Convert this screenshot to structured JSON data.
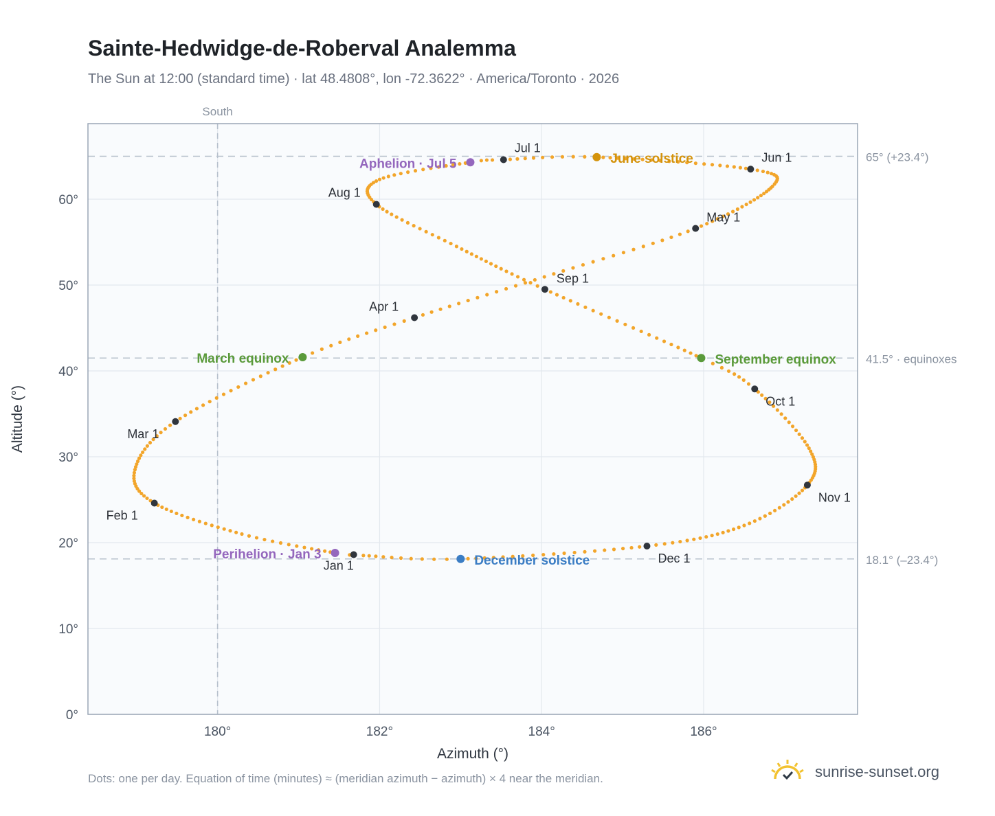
{
  "header": {
    "title": "Sainte-Hedwidge-de-Roberval Analemma",
    "subtitle": "The Sun at 12:00 (standard time) · lat 48.4808°, lon -72.3622° · America/Toronto · 2026"
  },
  "footer": {
    "note": "Dots: one per day. Equation of time (minutes) ≈ (meridian azimuth − azimuth) × 4 near the meridian.",
    "brand": "sunrise-sunset.org"
  },
  "colors": {
    "curve": "#f2a52a",
    "month_marker": "#30353d",
    "solstice_june": "#d4930c",
    "solstice_december": "#3b7dc4",
    "equinox": "#5a9a3a",
    "apsis": "#9467bd",
    "reference_line": "#b6c0cc",
    "plot_bg": "#f9fbfd",
    "axis_border": "#9aa6b5"
  },
  "chart_data": {
    "type": "scatter",
    "title": "Sainte-Hedwidge-de-Roberval Analemma",
    "xlabel": "Azimuth (°)",
    "ylabel": "Altitude (°)",
    "xlim": [
      178.4,
      187.9
    ],
    "ylim": [
      0,
      68.8
    ],
    "x_ticks": [
      180,
      182,
      184,
      186
    ],
    "x_tick_labels": [
      "180°",
      "182°",
      "184°",
      "186°"
    ],
    "y_ticks": [
      0,
      10,
      20,
      30,
      40,
      50,
      60
    ],
    "y_tick_labels": [
      "0°",
      "10°",
      "20°",
      "30°",
      "40°",
      "50°",
      "60°"
    ],
    "grid": true,
    "south_line": {
      "x": 180,
      "label": "South"
    },
    "reference_lines": [
      {
        "y": 65.0,
        "label": "65° (+23.4°)"
      },
      {
        "y": 41.5,
        "label": "41.5° · equinoxes"
      },
      {
        "y": 18.1,
        "label": "18.1° (–23.4°)"
      }
    ],
    "month_markers": [
      {
        "label": "Jan 1",
        "x": 181.68,
        "y": 18.6
      },
      {
        "label": "Feb 1",
        "x": 179.22,
        "y": 24.6
      },
      {
        "label": "Mar 1",
        "x": 179.48,
        "y": 34.1
      },
      {
        "label": "Apr 1",
        "x": 182.43,
        "y": 46.2
      },
      {
        "label": "May 1",
        "x": 185.9,
        "y": 56.6
      },
      {
        "label": "Jun 1",
        "x": 186.58,
        "y": 63.5
      },
      {
        "label": "Jul 1",
        "x": 183.53,
        "y": 64.6
      },
      {
        "label": "Aug 1",
        "x": 181.96,
        "y": 59.4
      },
      {
        "label": "Sep 1",
        "x": 184.04,
        "y": 49.5
      },
      {
        "label": "Oct 1",
        "x": 186.63,
        "y": 37.9
      },
      {
        "label": "Nov 1",
        "x": 187.28,
        "y": 26.7
      },
      {
        "label": "Dec 1",
        "x": 185.3,
        "y": 19.6
      }
    ],
    "special_points": [
      {
        "label": "June solstice",
        "x": 184.68,
        "y": 64.9,
        "kind": "solstice_june"
      },
      {
        "label": "December solstice",
        "x": 183.0,
        "y": 18.1,
        "kind": "solstice_december"
      },
      {
        "label": "March equinox",
        "x": 181.05,
        "y": 41.6,
        "kind": "equinox"
      },
      {
        "label": "September equinox",
        "x": 185.97,
        "y": 41.5,
        "kind": "equinox"
      },
      {
        "label": "Aphelion · Jul 5",
        "x": 183.12,
        "y": 64.3,
        "kind": "apsis"
      },
      {
        "label": "Perihelion · Jan 3",
        "x": 181.45,
        "y": 18.8,
        "kind": "apsis"
      }
    ],
    "daily_path_knots": [
      [
        1,
        181.68,
        18.6
      ],
      [
        3,
        181.45,
        18.8
      ],
      [
        16,
        180.3,
        21.0
      ],
      [
        32,
        179.22,
        24.6
      ],
      [
        45,
        178.98,
        28.5
      ],
      [
        60,
        179.48,
        34.1
      ],
      [
        79,
        181.05,
        41.6
      ],
      [
        91,
        182.43,
        46.2
      ],
      [
        106,
        184.15,
        51.3
      ],
      [
        121,
        185.9,
        56.6
      ],
      [
        140,
        186.85,
        61.5
      ],
      [
        152,
        186.58,
        63.5
      ],
      [
        172,
        184.68,
        64.9
      ],
      [
        182,
        183.53,
        64.6
      ],
      [
        186,
        183.12,
        64.3
      ],
      [
        200,
        182.0,
        62.3
      ],
      [
        213,
        181.96,
        59.4
      ],
      [
        228,
        182.95,
        54.5
      ],
      [
        244,
        184.04,
        49.5
      ],
      [
        266,
        185.97,
        41.5
      ],
      [
        274,
        186.63,
        37.9
      ],
      [
        290,
        187.3,
        31.0
      ],
      [
        305,
        187.28,
        26.7
      ],
      [
        320,
        186.5,
        22.0
      ],
      [
        335,
        185.3,
        19.6
      ],
      [
        355,
        183.0,
        18.1
      ],
      [
        365,
        181.8,
        18.5
      ],
      [
        366,
        181.68,
        18.6
      ]
    ]
  }
}
